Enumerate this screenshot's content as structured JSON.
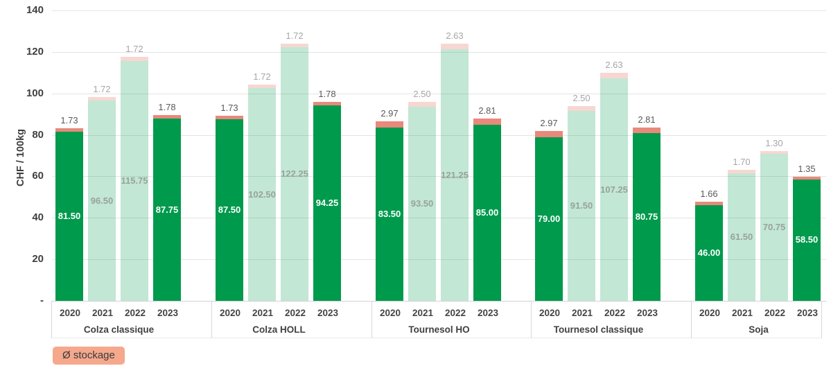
{
  "chart_data": {
    "type": "bar",
    "variant": "grouped-stacked",
    "title": "",
    "xlabel": "",
    "ylabel": "CHF / 100kg",
    "ylim": [
      0,
      140
    ],
    "ytick_interval": 20,
    "yticks": [
      "-",
      "20",
      "40",
      "60",
      "80",
      "100",
      "120",
      "140"
    ],
    "grid": true,
    "years": [
      "2020",
      "2021",
      "2022",
      "2023"
    ],
    "muted_years": [
      "2021",
      "2022"
    ],
    "legend": {
      "label": "Ø stockage",
      "position": "bottom-left"
    },
    "groups": [
      {
        "label": "Colza classique",
        "base": [
          81.5,
          96.5,
          115.75,
          87.75
        ],
        "stockage": [
          1.73,
          1.72,
          1.72,
          1.78
        ]
      },
      {
        "label": "Colza HOLL",
        "base": [
          87.5,
          102.5,
          122.25,
          94.25
        ],
        "stockage": [
          1.73,
          1.72,
          1.72,
          1.78
        ]
      },
      {
        "label": "Tournesol HO",
        "base": [
          83.5,
          93.5,
          121.25,
          85.0
        ],
        "stockage": [
          2.97,
          2.5,
          2.63,
          2.81
        ]
      },
      {
        "label": "Tournesol classique",
        "base": [
          79.0,
          91.5,
          107.25,
          80.75
        ],
        "stockage": [
          2.97,
          2.5,
          2.63,
          2.81
        ]
      },
      {
        "label": "Soja",
        "base": [
          46.0,
          61.5,
          70.75,
          58.5
        ],
        "stockage": [
          1.66,
          1.7,
          1.3,
          1.35
        ]
      }
    ],
    "colors": {
      "bar": "#009A4D",
      "bar_muted": "#C7E5D3",
      "stockage": "#E8897B",
      "stockage_muted": "#F7D9D2",
      "value_label": "#FFFFFF",
      "value_label_muted": "#98A29C",
      "stockage_label": "#595959",
      "stockage_label_muted": "#A6A6A6",
      "axis_text": "#3F3F3F",
      "gridline": "#E4E4E4",
      "baseline": "#D2D2D2",
      "legend_bg": "#F5A88C",
      "legend_text": "#3A3A3A"
    }
  }
}
